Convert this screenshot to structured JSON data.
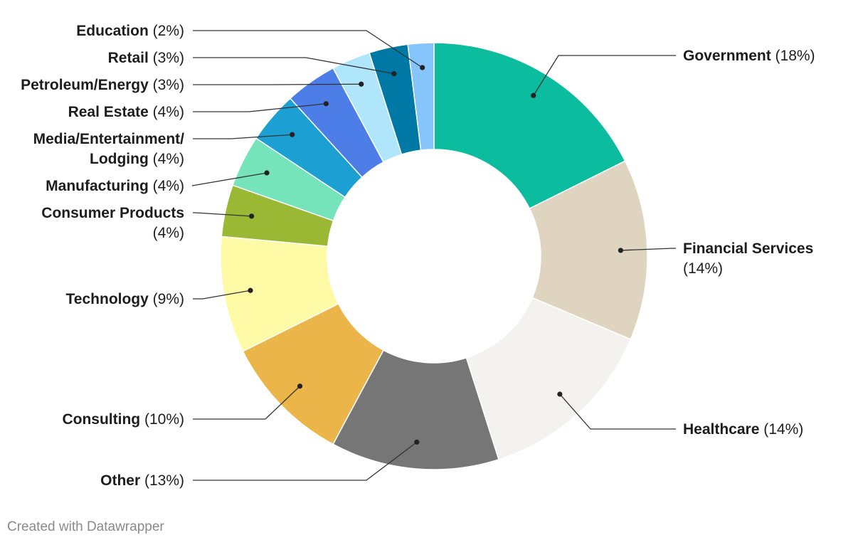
{
  "chart_data": {
    "type": "pie",
    "variant": "donut",
    "start_angle_deg": 0,
    "direction": "clockwise",
    "slices": [
      {
        "name": "Government",
        "pct_label": "(18%)",
        "value": 18,
        "color": "#0bbc9f"
      },
      {
        "name": "Financial Services",
        "pct_label": "(14%)",
        "value": 14,
        "color": "#dfd4c0"
      },
      {
        "name": "Healthcare",
        "pct_label": "(14%)",
        "value": 14,
        "color": "#f3f2ee"
      },
      {
        "name": "Other",
        "pct_label": "(13%)",
        "value": 13,
        "color": "#767676"
      },
      {
        "name": "Consulting",
        "pct_label": "(10%)",
        "value": 10,
        "color": "#ebb54a"
      },
      {
        "name": "Technology",
        "pct_label": "(9%)",
        "value": 9,
        "color": "#fffaa6"
      },
      {
        "name": "Consumer Products",
        "pct_label": "(4%)",
        "value": 4,
        "color": "#9ab834"
      },
      {
        "name": "Manufacturing",
        "pct_label": "(4%)",
        "value": 4,
        "color": "#75e4ba"
      },
      {
        "name": "Media/Entertainment/ Lodging",
        "pct_label": "(4%)",
        "value": 4,
        "color": "#1ca0d3"
      },
      {
        "name": "Real Estate",
        "pct_label": "(4%)",
        "value": 4,
        "color": "#4d7ee8"
      },
      {
        "name": "Petroleum/Energy",
        "pct_label": "(3%)",
        "value": 3,
        "color": "#b0e6fb"
      },
      {
        "name": "Retail",
        "pct_label": "(3%)",
        "value": 3,
        "color": "#0078a6"
      },
      {
        "name": "Education",
        "pct_label": "(2%)",
        "value": 2,
        "color": "#86c5fb"
      }
    ]
  },
  "credit": "Created with Datawrapper"
}
